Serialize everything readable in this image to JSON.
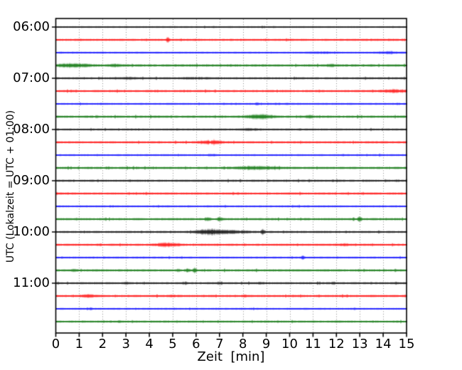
{
  "figure": {
    "background": "#ffffff"
  },
  "chart_data": {
    "type": "line",
    "subtype": "helicorder-seismogram-dayplot",
    "title": "",
    "xlabel": "Zeit  [min]",
    "ylabel": "UTC (Lokalzeit = UTC + 01:00)",
    "xlim": [
      0,
      15
    ],
    "minutes_per_line": 15,
    "x_tick_labels": [
      "0",
      "1",
      "2",
      "3",
      "4",
      "5",
      "6",
      "7",
      "8",
      "9",
      "10",
      "11",
      "12",
      "13",
      "14",
      "15"
    ],
    "hour_tick_labels": [
      "06:00",
      "07:00",
      "08:00",
      "09:00",
      "10:00",
      "11:00"
    ],
    "grid": "vertical-dotted",
    "legend": "none",
    "colors": {
      "cycle": [
        "#000000",
        "#ff0000",
        "#0000ff",
        "#006e00"
      ],
      "grid": "#8c8c8c",
      "axis": "#000000",
      "text": "#000000"
    },
    "traces": [
      {
        "start": "06:00",
        "color": "#000000",
        "noise_level": 1.1,
        "events": []
      },
      {
        "start": "06:15",
        "color": "#ff0000",
        "noise_level": 1.4,
        "events": [
          {
            "t_min": 4.78,
            "amp": 3.2,
            "width_min": 0.05
          }
        ]
      },
      {
        "start": "06:30",
        "color": "#0000ff",
        "noise_level": 1.25,
        "events": [
          {
            "t_min": 11.3,
            "amp": 0.7,
            "width_min": 0.4
          },
          {
            "t_min": 14.2,
            "amp": 0.9,
            "width_min": 0.3
          }
        ]
      },
      {
        "start": "06:45",
        "color": "#006e00",
        "noise_level": 1.7,
        "events": [
          {
            "t_min": 0.75,
            "amp": 2.0,
            "width_min": 0.45
          },
          {
            "t_min": 2.5,
            "amp": 0.7,
            "width_min": 0.25
          },
          {
            "t_min": 11.8,
            "amp": 0.9,
            "width_min": 0.15
          }
        ]
      },
      {
        "start": "07:00",
        "color": "#000000",
        "noise_level": 1.4,
        "events": [
          {
            "t_min": 3.0,
            "amp": 0.8,
            "width_min": 0.25
          },
          {
            "t_min": 6.0,
            "amp": 0.6,
            "width_min": 0.7
          }
        ]
      },
      {
        "start": "07:15",
        "color": "#ff0000",
        "noise_level": 1.5,
        "events": [
          {
            "t_min": 14.5,
            "amp": 1.4,
            "width_min": 0.4
          }
        ]
      },
      {
        "start": "07:30",
        "color": "#0000ff",
        "noise_level": 1.25,
        "events": [
          {
            "t_min": 8.6,
            "amp": 1.4,
            "width_min": 0.05
          }
        ]
      },
      {
        "start": "07:45",
        "color": "#006e00",
        "noise_level": 1.6,
        "events": [
          {
            "t_min": 8.7,
            "amp": 2.6,
            "width_min": 0.4
          },
          {
            "t_min": 10.8,
            "amp": 1.3,
            "width_min": 0.12
          }
        ]
      },
      {
        "start": "08:00",
        "color": "#000000",
        "noise_level": 1.3,
        "events": [
          {
            "t_min": 8.3,
            "amp": 0.9,
            "width_min": 0.3
          }
        ]
      },
      {
        "start": "08:15",
        "color": "#ff0000",
        "noise_level": 1.5,
        "events": [
          {
            "t_min": 6.7,
            "amp": 1.8,
            "width_min": 0.35
          }
        ]
      },
      {
        "start": "08:30",
        "color": "#0000ff",
        "noise_level": 1.25,
        "events": [
          {
            "t_min": 6.75,
            "amp": 0.9,
            "width_min": 0.08
          }
        ]
      },
      {
        "start": "08:45",
        "color": "#006e00",
        "noise_level": 1.6,
        "events": [
          {
            "t_min": 8.6,
            "amp": 1.5,
            "width_min": 0.7
          }
        ]
      },
      {
        "start": "09:00",
        "color": "#000000",
        "noise_level": 1.45,
        "events": []
      },
      {
        "start": "09:15",
        "color": "#ff0000",
        "noise_level": 1.5,
        "events": []
      },
      {
        "start": "09:30",
        "color": "#0000ff",
        "noise_level": 1.25,
        "events": []
      },
      {
        "start": "09:45",
        "color": "#006e00",
        "noise_level": 1.55,
        "events": [
          {
            "t_min": 6.5,
            "amp": 1.8,
            "width_min": 0.08
          },
          {
            "t_min": 7.0,
            "amp": 1.8,
            "width_min": 0.08
          },
          {
            "t_min": 12.97,
            "amp": 2.4,
            "width_min": 0.06
          }
        ]
      },
      {
        "start": "10:00",
        "color": "#000000",
        "noise_level": 1.45,
        "events": [
          {
            "t_min": 6.6,
            "amp": 3.3,
            "width_min": 0.45
          },
          {
            "t_min": 7.7,
            "amp": 1.4,
            "width_min": 0.45
          },
          {
            "t_min": 8.85,
            "amp": 2.8,
            "width_min": 0.06
          }
        ]
      },
      {
        "start": "10:15",
        "color": "#ff0000",
        "noise_level": 1.5,
        "events": [
          {
            "t_min": 4.75,
            "amp": 2.0,
            "width_min": 0.35
          },
          {
            "t_min": 12.35,
            "amp": 0.9,
            "width_min": 0.15
          }
        ]
      },
      {
        "start": "10:30",
        "color": "#0000ff",
        "noise_level": 1.25,
        "events": [
          {
            "t_min": 10.55,
            "amp": 2.3,
            "width_min": 0.05
          }
        ]
      },
      {
        "start": "10:45",
        "color": "#006e00",
        "noise_level": 1.55,
        "events": [
          {
            "t_min": 5.62,
            "amp": 2.6,
            "width_min": 0.05
          },
          {
            "t_min": 5.92,
            "amp": 2.6,
            "width_min": 0.05
          },
          {
            "t_min": 0.8,
            "amp": 1.0,
            "width_min": 0.12
          }
        ]
      },
      {
        "start": "11:00",
        "color": "#000000",
        "noise_level": 1.4,
        "events": [
          {
            "t_min": 3.0,
            "amp": 0.9,
            "width_min": 0.08
          },
          {
            "t_min": 5.5,
            "amp": 1.3,
            "width_min": 0.08
          },
          {
            "t_min": 7.0,
            "amp": 1.1,
            "width_min": 0.06
          },
          {
            "t_min": 8.7,
            "amp": 0.9,
            "width_min": 0.08
          },
          {
            "t_min": 11.85,
            "amp": 1.1,
            "width_min": 0.06
          },
          {
            "t_min": 14.5,
            "amp": 0.8,
            "width_min": 0.06
          }
        ]
      },
      {
        "start": "11:15",
        "color": "#ff0000",
        "noise_level": 1.5,
        "events": [
          {
            "t_min": 1.4,
            "amp": 1.4,
            "width_min": 0.25
          },
          {
            "t_min": 5.0,
            "amp": 0.7,
            "width_min": 0.15
          },
          {
            "t_min": 8.05,
            "amp": 0.7,
            "width_min": 0.12
          }
        ]
      },
      {
        "start": "11:30",
        "color": "#0000ff",
        "noise_level": 1.2,
        "events": [
          {
            "t_min": 1.5,
            "amp": 1.1,
            "width_min": 0.06
          }
        ]
      },
      {
        "start": "11:45",
        "color": "#006e00",
        "noise_level": 1.35,
        "events": [
          {
            "t_min": 2.7,
            "amp": 0.7,
            "width_min": 0.06
          },
          {
            "t_min": 9.0,
            "amp": 0.6,
            "width_min": 0.08
          },
          {
            "t_min": 12.0,
            "amp": 0.5,
            "width_min": 0.08
          }
        ]
      }
    ]
  }
}
